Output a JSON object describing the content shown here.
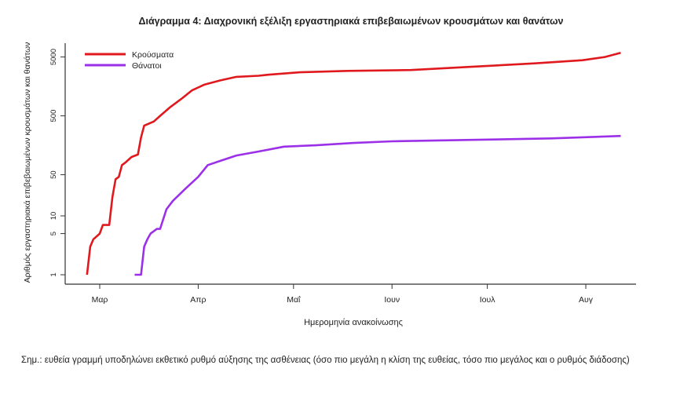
{
  "chart_data": {
    "type": "line",
    "title": "Διάγραμμα 4: Διαχρονική εξέλιξη εργαστηριακά επιβεβαιωμένων κρουσμάτων και θανάτων",
    "xlabel": "Ημερομηνία ανακοίνωσης",
    "ylabel": "Αριθμός εργαστηριακά επιβεβαιωμένων κρουσμάτων και θανάτων",
    "y_scale": "log",
    "ylim": [
      1,
      6000
    ],
    "y_ticks": [
      1,
      5,
      10,
      50,
      500,
      5000
    ],
    "x_ticks": [
      {
        "label": "Μαρ",
        "date": "2020-03-01"
      },
      {
        "label": "Απρ",
        "date": "2020-04-01"
      },
      {
        "label": "Μαΐ",
        "date": "2020-05-01"
      },
      {
        "label": "Ιουν",
        "date": "2020-06-01"
      },
      {
        "label": "Ιουλ",
        "date": "2020-07-01"
      },
      {
        "label": "Αυγ",
        "date": "2020-08-01"
      }
    ],
    "grid": false,
    "legend_position": "top-left",
    "series": [
      {
        "name": "Κρούσματα",
        "color": "#e0191e",
        "points": [
          [
            "2020-02-26",
            1
          ],
          [
            "2020-02-27",
            3
          ],
          [
            "2020-02-28",
            4
          ],
          [
            "2020-03-01",
            5
          ],
          [
            "2020-03-02",
            7
          ],
          [
            "2020-03-04",
            7
          ],
          [
            "2020-03-05",
            21
          ],
          [
            "2020-03-06",
            42
          ],
          [
            "2020-03-07",
            46
          ],
          [
            "2020-03-08",
            73
          ],
          [
            "2020-03-09",
            80
          ],
          [
            "2020-03-11",
            100
          ],
          [
            "2020-03-13",
            110
          ],
          [
            "2020-03-14",
            215
          ],
          [
            "2020-03-15",
            340
          ],
          [
            "2020-03-18",
            400
          ],
          [
            "2020-03-20",
            500
          ],
          [
            "2020-03-23",
            690
          ],
          [
            "2020-03-27",
            1000
          ],
          [
            "2020-03-30",
            1350
          ],
          [
            "2020-04-03",
            1700
          ],
          [
            "2020-04-08",
            2000
          ],
          [
            "2020-04-13",
            2300
          ],
          [
            "2020-04-20",
            2400
          ],
          [
            "2020-04-23",
            2500
          ],
          [
            "2020-05-03",
            2750
          ],
          [
            "2020-05-18",
            2900
          ],
          [
            "2020-06-07",
            3000
          ],
          [
            "2020-06-26",
            3400
          ],
          [
            "2020-07-16",
            3900
          ],
          [
            "2020-07-31",
            4400
          ],
          [
            "2020-08-07",
            5000
          ],
          [
            "2020-08-12",
            5900
          ]
        ]
      },
      {
        "name": "Θάνατοι",
        "color": "#9b30e8",
        "points": [
          [
            "2020-03-12",
            1
          ],
          [
            "2020-03-14",
            1
          ],
          [
            "2020-03-15",
            3
          ],
          [
            "2020-03-16",
            4
          ],
          [
            "2020-03-17",
            5
          ],
          [
            "2020-03-19",
            6
          ],
          [
            "2020-03-20",
            6
          ],
          [
            "2020-03-22",
            13
          ],
          [
            "2020-03-24",
            18
          ],
          [
            "2020-03-28",
            29
          ],
          [
            "2020-04-01",
            46
          ],
          [
            "2020-04-04",
            73
          ],
          [
            "2020-04-08",
            86
          ],
          [
            "2020-04-13",
            106
          ],
          [
            "2020-04-20",
            124
          ],
          [
            "2020-04-28",
            150
          ],
          [
            "2020-05-08",
            158
          ],
          [
            "2020-05-20",
            173
          ],
          [
            "2020-06-01",
            185
          ],
          [
            "2020-06-26",
            195
          ],
          [
            "2020-07-21",
            207
          ],
          [
            "2020-08-12",
            228
          ]
        ]
      }
    ]
  },
  "note": "Σημ.: ευθεία γραμμή υποδηλώνει εκθετικό ρυθμό αύξησης της ασθένειας (όσο πιο μεγάλη η κλίση της ευθείας, τόσο πιο μεγάλος και ο ρυθμός διάδοσης)"
}
